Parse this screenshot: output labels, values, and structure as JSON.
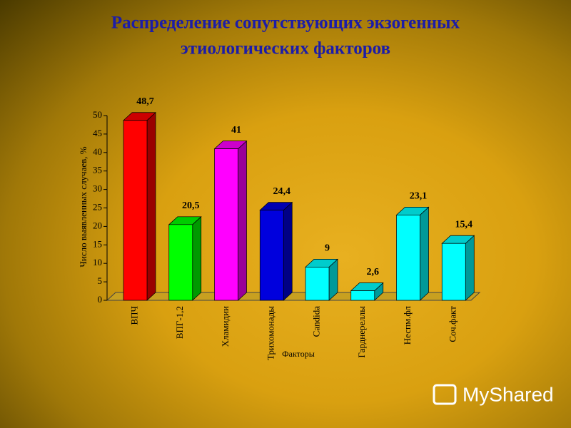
{
  "chart_data": {
    "type": "bar3d",
    "title": [
      "Распределение сопутствующих экзогенных",
      "этиологических факторов"
    ],
    "y_label": "Число выявленных случаев, %",
    "x_label": "Факторы",
    "categories": [
      "ВПЧ",
      "ВПГ-1,2",
      "Хламидии",
      "Трихомонады",
      "Candida",
      "Гарднереллы",
      "Неспм.фл",
      "Соч.факт"
    ],
    "values": [
      48.7,
      20.5,
      41,
      24.4,
      9,
      2.6,
      23.1,
      15.4
    ],
    "value_labels": [
      "48,7",
      "20,5",
      "41",
      "24,4",
      "9",
      "2,6",
      "23,1",
      "15,4"
    ],
    "colors": [
      "#ff0000",
      "#00ff00",
      "#ff00ff",
      "#0000dd",
      "#00ffff",
      "#00ffff",
      "#00ffff",
      "#00ffff"
    ],
    "ylim": [
      0,
      50
    ],
    "yticks": [
      0,
      5,
      10,
      15,
      20,
      25,
      30,
      35,
      40,
      45,
      50
    ],
    "watermark": "MyShared"
  }
}
